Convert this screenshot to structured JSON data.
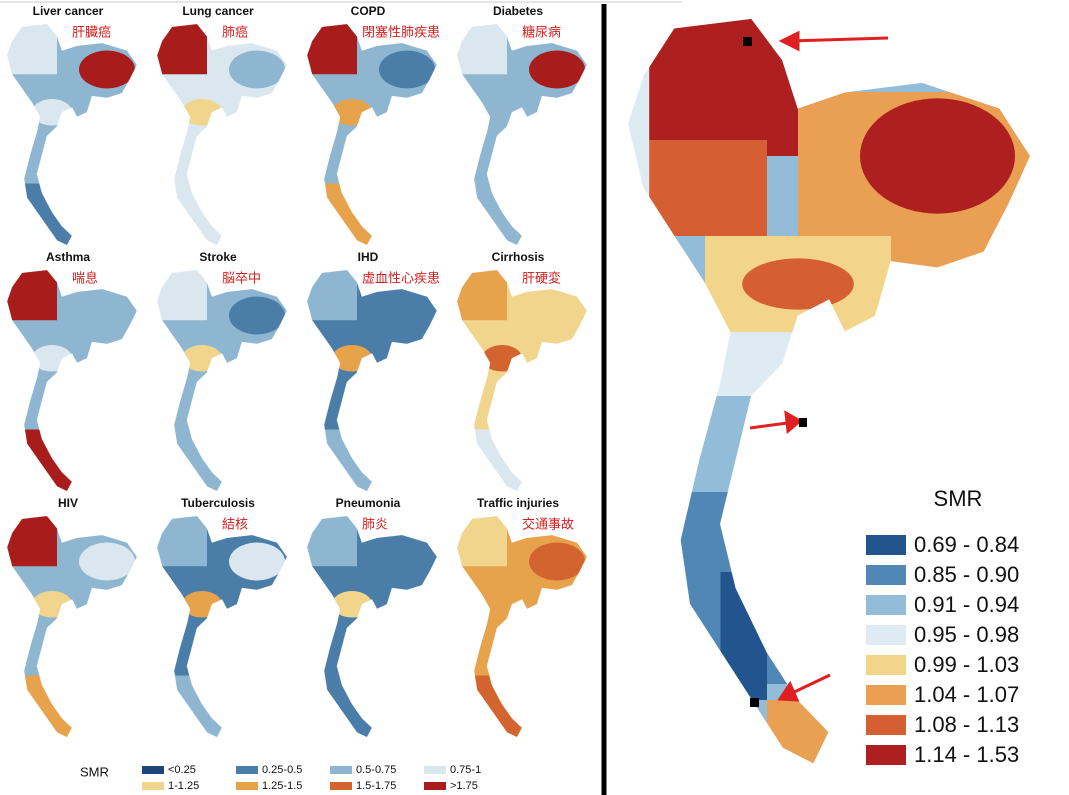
{
  "small_maps": [
    {
      "title": "Liver cancer",
      "label_zh": "肝臓癌"
    },
    {
      "title": "Lung cancer",
      "label_zh": "肺癌"
    },
    {
      "title": "COPD",
      "label_zh": "閉塞性肺疾患"
    },
    {
      "title": "Diabetes",
      "label_zh": "糖尿病"
    },
    {
      "title": "Asthma",
      "label_zh": "喘息"
    },
    {
      "title": "Stroke",
      "label_zh": "脳卒中"
    },
    {
      "title": "IHD",
      "label_zh": "虚血性心疾患"
    },
    {
      "title": "Cirrhosis",
      "label_zh": "肝硬変"
    },
    {
      "title": "HIV"
    },
    {
      "title": "Tuberculosis",
      "label_zh": "結核"
    },
    {
      "title": "Pneumonia",
      "label_zh": "肺炎"
    },
    {
      "title": "Traffic injuries",
      "label_zh": "交通事故"
    }
  ],
  "small_legend": {
    "title": "SMR",
    "items": [
      {
        "label": "<0.25",
        "color": "#1d4477"
      },
      {
        "label": "0.25-0.5",
        "color": "#4a7ea8"
      },
      {
        "label": "0.5-0.75",
        "color": "#8fb6d1"
      },
      {
        "label": "0.75-1",
        "color": "#dbe7ef"
      },
      {
        "label": "1-1.25",
        "color": "#f1d58c"
      },
      {
        "label": "1.25-1.5",
        "color": "#e7a24c"
      },
      {
        "label": "1.5-1.75",
        "color": "#d4642f"
      },
      {
        "label": ">1.75",
        "color": "#a81c1c"
      }
    ]
  },
  "main_legend": {
    "title": "SMR",
    "items": [
      {
        "label": "0.69 - 0.84",
        "color": "#22548e"
      },
      {
        "label": "0.85 - 0.90",
        "color": "#5187b5"
      },
      {
        "label": "0.91 - 0.94",
        "color": "#93bcd9"
      },
      {
        "label": "0.95 - 0.98",
        "color": "#deebf3"
      },
      {
        "label": "0.99 - 1.03",
        "color": "#f3d48b"
      },
      {
        "label": "1.04 - 1.07",
        "color": "#e9a053"
      },
      {
        "label": "1.08 - 1.13",
        "color": "#d55f33"
      },
      {
        "label": "1.14 - 1.53",
        "color": "#ae1f1f"
      }
    ]
  }
}
